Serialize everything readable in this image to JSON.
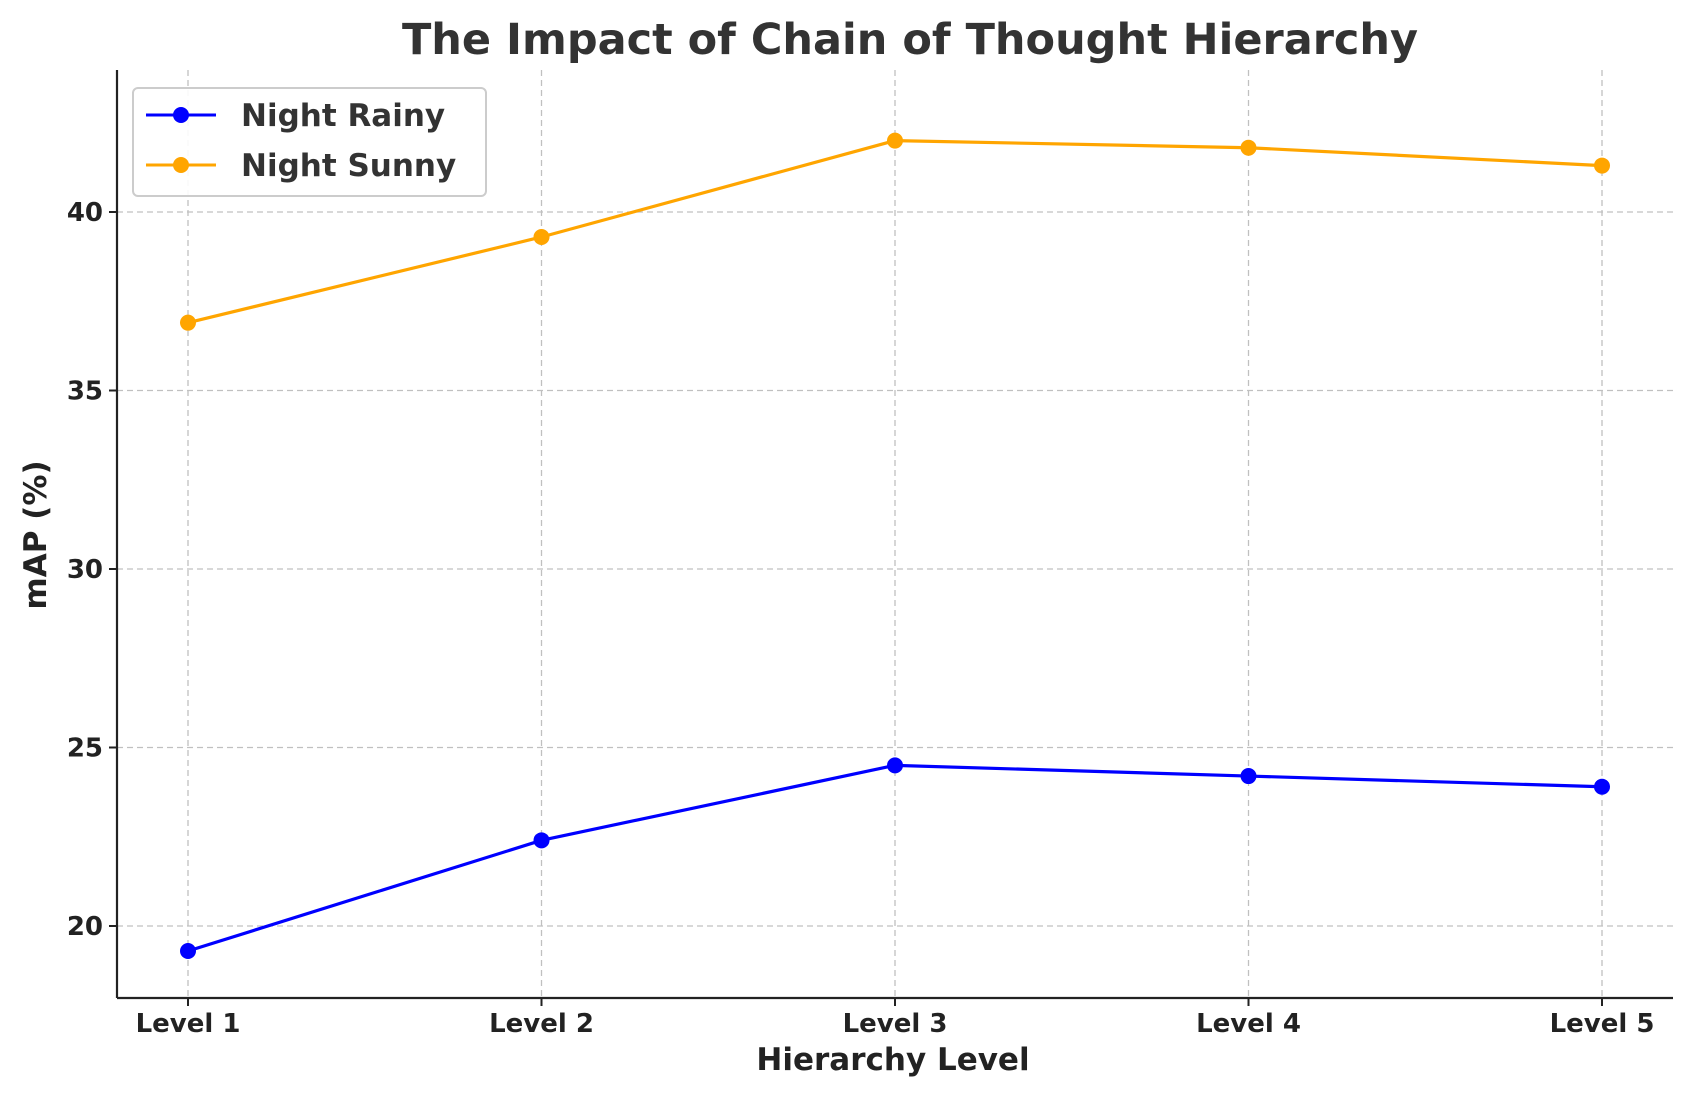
{
  "chart_data": {
    "type": "line",
    "title": "The Impact of Chain of Thought Hierarchy",
    "xlabel": "Hierarchy Level",
    "ylabel": "mAP (%)",
    "categories": [
      "Level 1",
      "Level 2",
      "Level 3",
      "Level 4",
      "Level 5"
    ],
    "ylim": [
      18,
      44
    ],
    "yticks": [
      20,
      25,
      30,
      35,
      40
    ],
    "grid": true,
    "legend_position": "top-left",
    "series": [
      {
        "name": "Night Rainy",
        "color": "#0000ff",
        "values": [
          19.3,
          22.4,
          24.5,
          24.2,
          23.9
        ]
      },
      {
        "name": "Night Sunny",
        "color": "#ffa500",
        "values": [
          36.9,
          39.3,
          42.0,
          41.8,
          41.3
        ]
      }
    ]
  }
}
